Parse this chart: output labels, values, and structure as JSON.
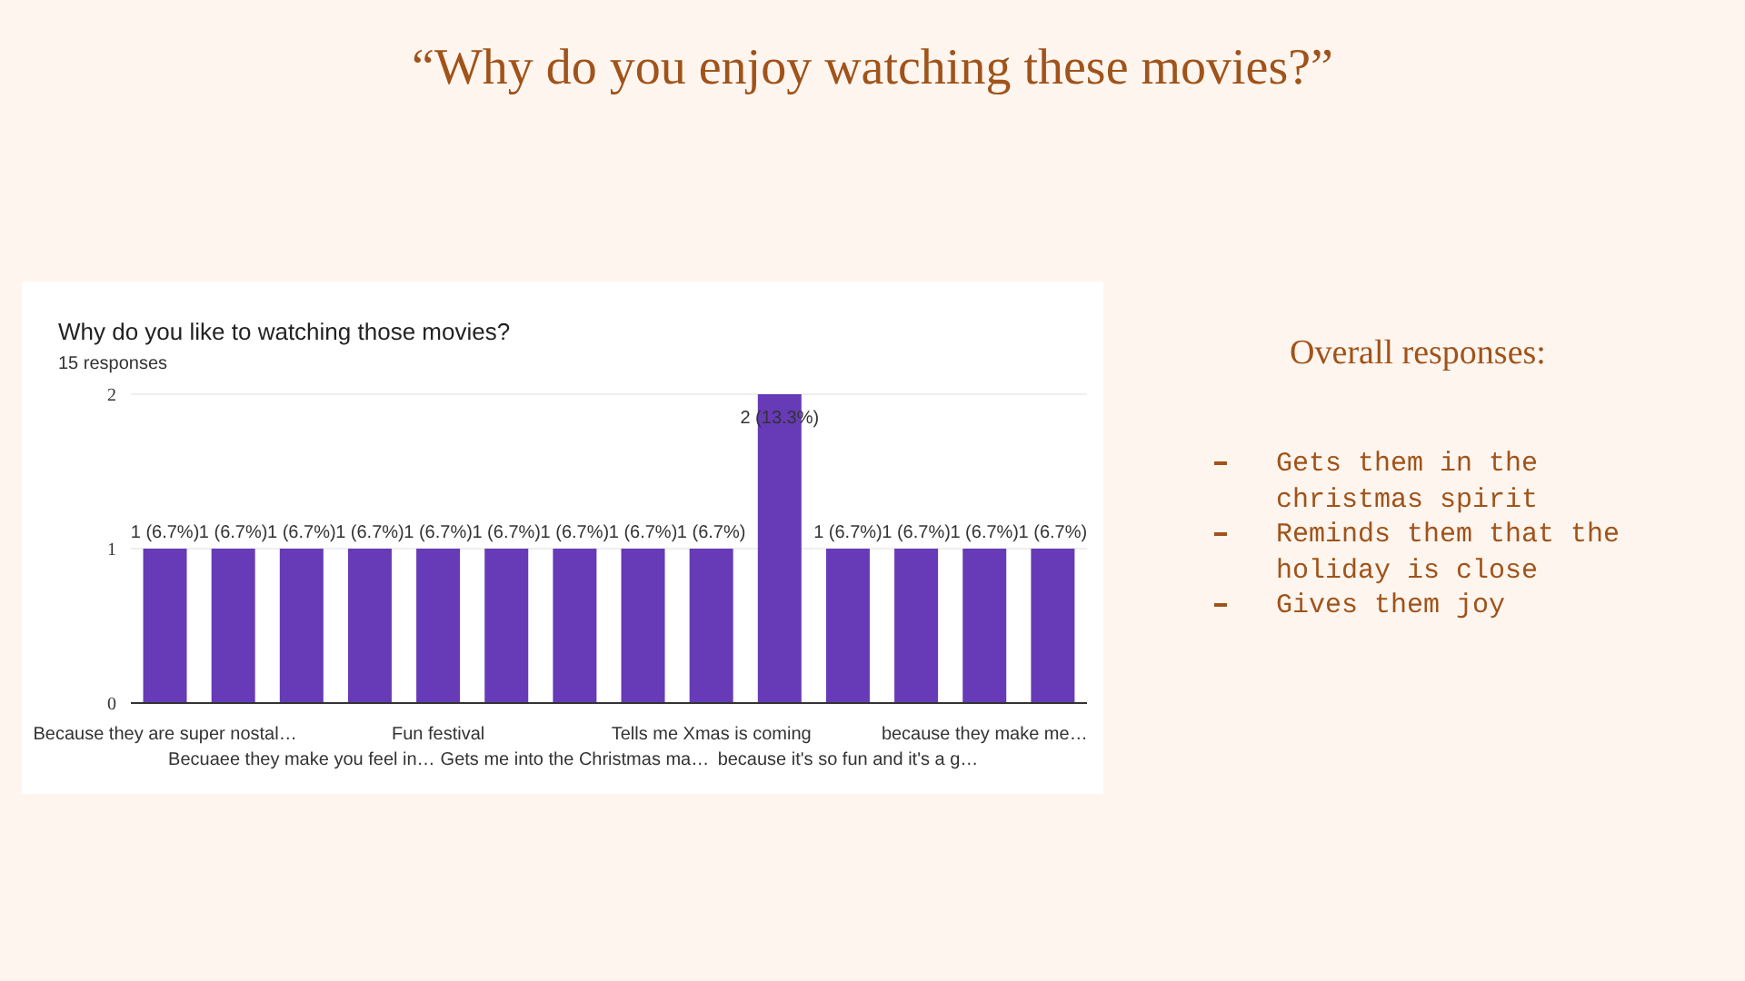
{
  "chart_data": {
    "type": "bar",
    "title": "Why do you like to watching those movies?",
    "subtitle": "15 responses",
    "categories": [
      "Because they are super nostal…",
      null,
      "Becuaee they make you feel in…",
      null,
      "Fun festival",
      null,
      "Gets me into the Christmas ma…",
      null,
      "Tells me Xmas is coming",
      null,
      "because it's so fun and it's a g…",
      null,
      "because they make me…",
      null
    ],
    "values": [
      1,
      1,
      1,
      1,
      1,
      1,
      1,
      1,
      1,
      2,
      1,
      1,
      1,
      1
    ],
    "value_labels": [
      "1 (6.7%)",
      "1 (6.7%)",
      "1 (6.7%)",
      "1 (6.7%)",
      "1 (6.7%)",
      "1 (6.7%)",
      "1 (6.7%)",
      "1 (6.7%)",
      "1 (6.7%)",
      "2 (13.3%)",
      "1 (6.7%)",
      "1 (6.7%)",
      "1 (6.7%)",
      "1 (6.7%)"
    ],
    "color": "#673ab7",
    "ylim": [
      0,
      2
    ],
    "yticks": [
      0,
      1,
      2
    ],
    "grid": "y",
    "annotations": [
      "“Why do you enjoy watching these movies?”",
      "Overall responses:",
      "Gets them in the christmas spirit",
      "Reminds them that the holiday is close",
      "Gives them joy"
    ]
  }
}
